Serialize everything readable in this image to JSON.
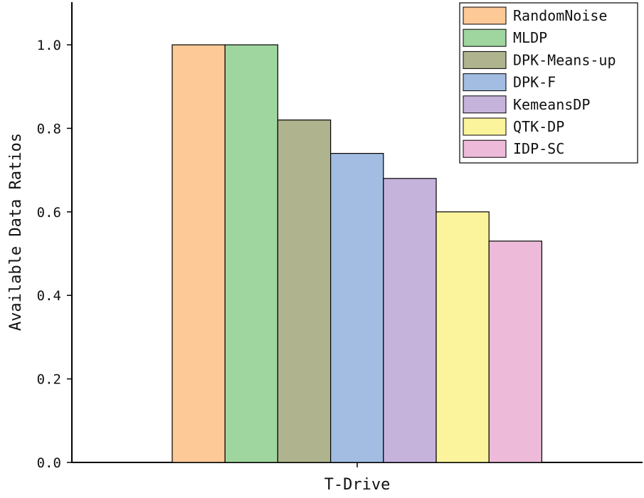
{
  "chart_data": {
    "type": "bar",
    "categories": [
      "T-Drive"
    ],
    "series": [
      {
        "name": "RandomNoise",
        "values": [
          1.0
        ],
        "color": "#FDC997"
      },
      {
        "name": "MLDP",
        "values": [
          1.0
        ],
        "color": "#9FD59F"
      },
      {
        "name": "DPK-Means-up",
        "values": [
          0.82
        ],
        "color": "#B0B48E"
      },
      {
        "name": "DPK-F",
        "values": [
          0.74
        ],
        "color": "#A3BCE2"
      },
      {
        "name": "KemeansDP",
        "values": [
          0.68
        ],
        "color": "#C6B3DB"
      },
      {
        "name": "QTK-DP",
        "values": [
          0.6
        ],
        "color": "#FBF49C"
      },
      {
        "name": "IDP-SC",
        "values": [
          0.53
        ],
        "color": "#EDBBD9"
      }
    ],
    "xlabel": "T-Drive",
    "ylabel": "Available Data Ratios",
    "ylim": [
      0.0,
      1.1
    ],
    "yticks": [
      "0.0",
      "0.2",
      "0.4",
      "0.6",
      "0.8",
      "1.0"
    ],
    "grid": false,
    "legend_position": "top-right"
  }
}
